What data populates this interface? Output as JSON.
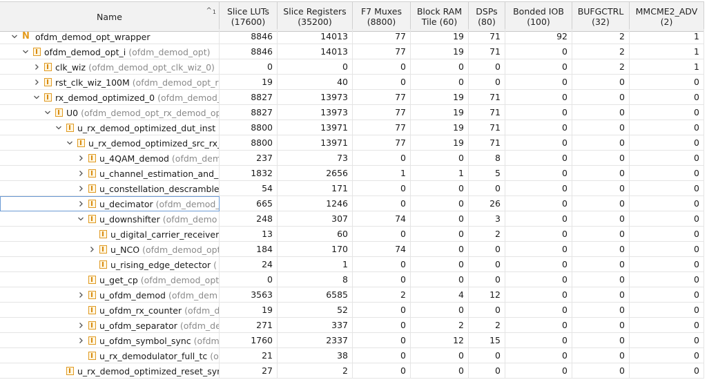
{
  "header": {
    "name": "Name",
    "sort_number": "1",
    "columns": [
      {
        "label": "Slice LUTs",
        "sub": "(17600)"
      },
      {
        "label": "Slice Registers",
        "sub": "(35200)"
      },
      {
        "label": "F7 Muxes",
        "sub": "(8800)"
      },
      {
        "label": "Block RAM",
        "sub": "Tile (60)"
      },
      {
        "label": "DSPs",
        "sub": "(80)"
      },
      {
        "label": "Bonded IOB",
        "sub": "(100)"
      },
      {
        "label": "BUFGCTRL",
        "sub": "(32)"
      },
      {
        "label": "MMCME2_ADV",
        "sub": "(2)"
      }
    ]
  },
  "rows": [
    {
      "depth": 0,
      "toggle": "expanded",
      "icon": "top",
      "name": "ofdm_demod_opt_wrapper",
      "inst": "",
      "v": [
        "8846",
        "14013",
        "77",
        "19",
        "71",
        "92",
        "2",
        "1"
      ]
    },
    {
      "depth": 1,
      "toggle": "expanded",
      "icon": "module",
      "name": "ofdm_demod_opt_i",
      "inst": "(ofdm_demod_opt)",
      "v": [
        "8846",
        "14013",
        "77",
        "19",
        "71",
        "0",
        "2",
        "1"
      ]
    },
    {
      "depth": 2,
      "toggle": "collapsed",
      "icon": "module",
      "name": "clk_wiz",
      "inst": "(ofdm_demod_opt_clk_wiz_0)",
      "v": [
        "0",
        "0",
        "0",
        "0",
        "0",
        "0",
        "2",
        "1"
      ]
    },
    {
      "depth": 2,
      "toggle": "collapsed",
      "icon": "module",
      "name": "rst_clk_wiz_100M",
      "inst": "(ofdm_demod_opt_rs",
      "v": [
        "19",
        "40",
        "0",
        "0",
        "0",
        "0",
        "0",
        "0"
      ]
    },
    {
      "depth": 2,
      "toggle": "expanded",
      "icon": "module",
      "name": "rx_demod_optimized_0",
      "inst": "(ofdm_demod_",
      "v": [
        "8827",
        "13973",
        "77",
        "19",
        "71",
        "0",
        "0",
        "0"
      ]
    },
    {
      "depth": 3,
      "toggle": "expanded",
      "icon": "module",
      "name": "U0",
      "inst": "(ofdm_demod_opt_rx_demod_op",
      "v": [
        "8827",
        "13973",
        "77",
        "19",
        "71",
        "0",
        "0",
        "0"
      ]
    },
    {
      "depth": 4,
      "toggle": "expanded",
      "icon": "module",
      "name": "u_rx_demod_optimized_dut_inst",
      "inst": "(",
      "v": [
        "8800",
        "13971",
        "77",
        "19",
        "71",
        "0",
        "0",
        "0"
      ]
    },
    {
      "depth": 5,
      "toggle": "expanded",
      "icon": "module",
      "name": "u_rx_demod_optimized_src_rx_",
      "inst": "",
      "v": [
        "8800",
        "13971",
        "77",
        "19",
        "71",
        "0",
        "0",
        "0"
      ]
    },
    {
      "depth": 6,
      "toggle": "collapsed",
      "icon": "module",
      "name": "u_4QAM_demod",
      "inst": "(ofdm_dem",
      "v": [
        "237",
        "73",
        "0",
        "0",
        "8",
        "0",
        "0",
        "0"
      ]
    },
    {
      "depth": 6,
      "toggle": "collapsed",
      "icon": "module",
      "name": "u_channel_estimation_and_",
      "inst": "",
      "v": [
        "1832",
        "2656",
        "1",
        "1",
        "5",
        "0",
        "0",
        "0"
      ]
    },
    {
      "depth": 6,
      "toggle": "collapsed",
      "icon": "module",
      "name": "u_constellation_descramble",
      "inst": "",
      "v": [
        "54",
        "171",
        "0",
        "0",
        "0",
        "0",
        "0",
        "0"
      ]
    },
    {
      "depth": 6,
      "toggle": "collapsed",
      "icon": "module",
      "name": "u_decimator",
      "inst": "(ofdm_demod_",
      "v": [
        "665",
        "1246",
        "0",
        "0",
        "26",
        "0",
        "0",
        "0"
      ],
      "selected": true
    },
    {
      "depth": 6,
      "toggle": "expanded",
      "icon": "module",
      "name": "u_downshifter",
      "inst": "(ofdm_demo",
      "v": [
        "248",
        "307",
        "74",
        "0",
        "3",
        "0",
        "0",
        "0"
      ]
    },
    {
      "depth": 7,
      "toggle": "none",
      "icon": "module",
      "name": "u_digital_carrier_receiver",
      "inst": "",
      "v": [
        "13",
        "60",
        "0",
        "0",
        "2",
        "0",
        "0",
        "0"
      ]
    },
    {
      "depth": 7,
      "toggle": "collapsed",
      "icon": "module",
      "name": "u_NCO",
      "inst": "(ofdm_demod_opt",
      "v": [
        "184",
        "170",
        "74",
        "0",
        "0",
        "0",
        "0",
        "0"
      ]
    },
    {
      "depth": 7,
      "toggle": "none",
      "icon": "module",
      "name": "u_rising_edge_detector",
      "inst": "(",
      "v": [
        "24",
        "1",
        "0",
        "0",
        "0",
        "0",
        "0",
        "0"
      ]
    },
    {
      "depth": 6,
      "toggle": "none",
      "icon": "module",
      "name": "u_get_cp",
      "inst": "(ofdm_demod_opt",
      "v": [
        "0",
        "8",
        "0",
        "0",
        "0",
        "0",
        "0",
        "0"
      ]
    },
    {
      "depth": 6,
      "toggle": "collapsed",
      "icon": "module",
      "name": "u_ofdm_demod",
      "inst": "(ofdm_dem",
      "v": [
        "3563",
        "6585",
        "2",
        "4",
        "12",
        "0",
        "0",
        "0"
      ]
    },
    {
      "depth": 6,
      "toggle": "none",
      "icon": "module",
      "name": "u_ofdm_rx_counter",
      "inst": "(ofdm_d",
      "v": [
        "19",
        "52",
        "0",
        "0",
        "0",
        "0",
        "0",
        "0"
      ]
    },
    {
      "depth": 6,
      "toggle": "collapsed",
      "icon": "module",
      "name": "u_ofdm_separator",
      "inst": "(ofdm_de",
      "v": [
        "271",
        "337",
        "0",
        "2",
        "2",
        "0",
        "0",
        "0"
      ]
    },
    {
      "depth": 6,
      "toggle": "collapsed",
      "icon": "module",
      "name": "u_ofdm_symbol_sync",
      "inst": "(ofdm_",
      "v": [
        "1760",
        "2337",
        "0",
        "12",
        "15",
        "0",
        "0",
        "0"
      ]
    },
    {
      "depth": 6,
      "toggle": "none",
      "icon": "module",
      "name": "u_rx_demodulator_full_tc",
      "inst": "(o",
      "v": [
        "21",
        "38",
        "0",
        "0",
        "0",
        "0",
        "0",
        "0"
      ]
    },
    {
      "depth": 4,
      "toggle": "none",
      "icon": "module",
      "name": "u_rx_demod_optimized_reset_syr",
      "inst": "",
      "v": [
        "27",
        "2",
        "0",
        "0",
        "0",
        "0",
        "0",
        "0"
      ]
    }
  ]
}
